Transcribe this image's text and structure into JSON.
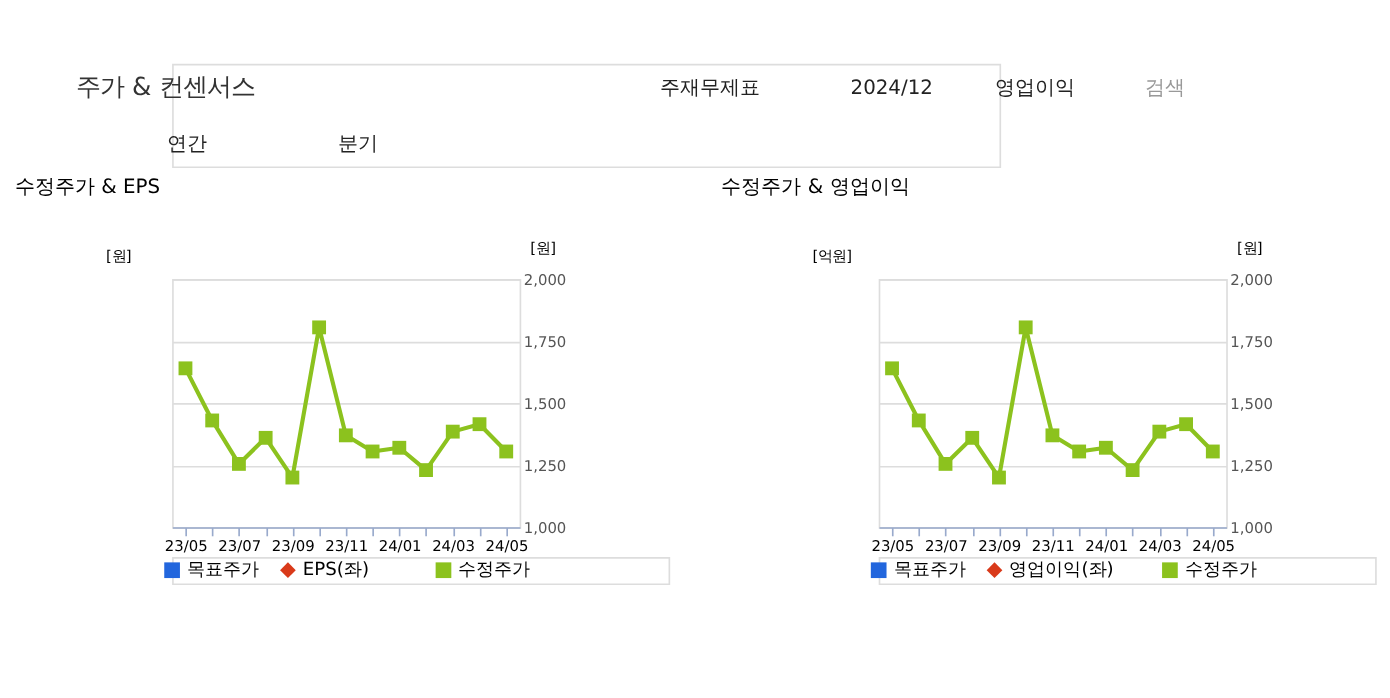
{
  "chart_data": [
    {
      "type": "line",
      "title": "수정주가 & EPS",
      "ylabel": "[원]",
      "y2label": "[원]",
      "annotations": [
        "주가 & 컨센서스",
        "주재무제표",
        "2024/12",
        "영업이익",
        "검색",
        "연간",
        "분기"
      ],
      "categories": [
        "23/05",
        null,
        "23/07",
        null,
        "23/09",
        null,
        "23/11",
        null,
        "24/01",
        null,
        "24/03",
        null,
        "24/05"
      ],
      "series": [
        {
          "name": "목표주가",
          "color": "#2266dd",
          "marker": "square",
          "values": [
            null,
            null,
            null,
            null,
            null,
            null,
            null,
            null,
            null,
            null,
            null,
            null,
            null
          ]
        },
        {
          "name": "EPS(좌)",
          "color": "#d93a1a",
          "marker": "diamond",
          "values": [
            null,
            null,
            null,
            null,
            null,
            null,
            null,
            null,
            null,
            null,
            null,
            null,
            null
          ]
        },
        {
          "name": "수정주가",
          "color": "#8cc21e",
          "marker": "square",
          "axis": "y2",
          "values": [
            1640,
            1430,
            1255,
            1360,
            1200,
            1805,
            1370,
            1305,
            1320,
            1230,
            1385,
            1415,
            1305
          ]
        }
      ],
      "y2lim": [
        1000,
        2000
      ],
      "y2ticks": [
        {
          "value": 1000,
          "label": "1,000"
        },
        {
          "value": 1250,
          "label": "1,250"
        },
        {
          "value": 1500,
          "label": "1,500"
        },
        {
          "value": 1750,
          "label": "1,750"
        },
        {
          "value": 2000,
          "label": "2,000"
        }
      ],
      "grid": "y",
      "legend": "bottom",
      "line_style": "solid"
    },
    {
      "type": "line",
      "title": "수정주가 & 영업이익",
      "ylabel": "[억원]",
      "y2label": "[원]",
      "categories": [
        "23/05",
        null,
        "23/07",
        null,
        "23/09",
        null,
        "23/11",
        null,
        "24/01",
        null,
        "24/03",
        null,
        "24/05"
      ],
      "series": [
        {
          "name": "목표주가",
          "color": "#2266dd",
          "marker": "square",
          "values": [
            null,
            null,
            null,
            null,
            null,
            null,
            null,
            null,
            null,
            null,
            null,
            null,
            null
          ]
        },
        {
          "name": "영업이익(좌)",
          "color": "#d93a1a",
          "marker": "diamond",
          "values": [
            null,
            null,
            null,
            null,
            null,
            null,
            null,
            null,
            null,
            null,
            null,
            null,
            null
          ]
        },
        {
          "name": "수정주가",
          "color": "#8cc21e",
          "marker": "square",
          "axis": "y2",
          "values": [
            1640,
            1430,
            1255,
            1360,
            1200,
            1805,
            1370,
            1305,
            1320,
            1230,
            1385,
            1415,
            1305
          ]
        }
      ],
      "y2lim": [
        1000,
        2000
      ],
      "y2ticks": [
        {
          "value": 1000,
          "label": "1,000"
        },
        {
          "value": 1250,
          "label": "1,250"
        },
        {
          "value": 1500,
          "label": "1,500"
        },
        {
          "value": 1750,
          "label": "1,750"
        },
        {
          "value": 2000,
          "label": "2,000"
        }
      ],
      "grid": "y",
      "legend": "bottom",
      "line_style": "solid"
    }
  ]
}
